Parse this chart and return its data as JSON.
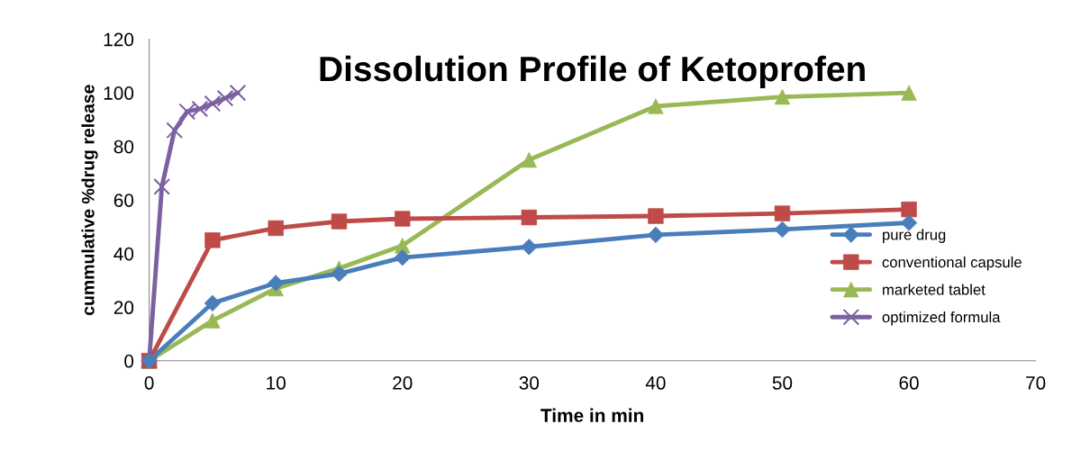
{
  "chart_data": {
    "type": "line",
    "title": "Dissolution Profile of Ketoprofen",
    "xlabel": "Time in min",
    "ylabel": "cummulative %drug release",
    "xlim": [
      0,
      70
    ],
    "xticks": [
      0,
      10,
      20,
      30,
      40,
      50,
      60,
      70
    ],
    "ylim": [
      0,
      120
    ],
    "yticks": [
      0,
      20,
      40,
      60,
      80,
      100,
      120
    ],
    "grid": false,
    "legend": "right",
    "line_style": "solid",
    "series": [
      {
        "name": "pure drug",
        "color": "#4a7ebb",
        "marker": "diamond",
        "x": [
          0,
          5,
          10,
          15,
          20,
          30,
          40,
          50,
          60
        ],
        "values": [
          0,
          21.5,
          29,
          32.5,
          38.5,
          42.5,
          47,
          49,
          51.5
        ]
      },
      {
        "name": "conventional capsule",
        "color": "#be4b48",
        "marker": "square",
        "x": [
          0,
          5,
          10,
          15,
          20,
          30,
          40,
          50,
          60
        ],
        "values": [
          0,
          45,
          49.5,
          52,
          53,
          53.5,
          54,
          55,
          56.5
        ]
      },
      {
        "name": "marketed tablet",
        "color": "#98b954",
        "marker": "triangle",
        "x": [
          0,
          5,
          10,
          15,
          20,
          30,
          40,
          50,
          60
        ],
        "values": [
          0,
          15,
          27,
          34.5,
          43,
          75,
          95,
          98.5,
          100
        ]
      },
      {
        "name": "optimized formula",
        "color": "#7d60a0",
        "marker": "cross",
        "x": [
          0,
          1,
          2,
          3,
          4,
          5,
          6,
          7
        ],
        "values": [
          0,
          65,
          86,
          93,
          94,
          96,
          98,
          100
        ]
      }
    ]
  }
}
